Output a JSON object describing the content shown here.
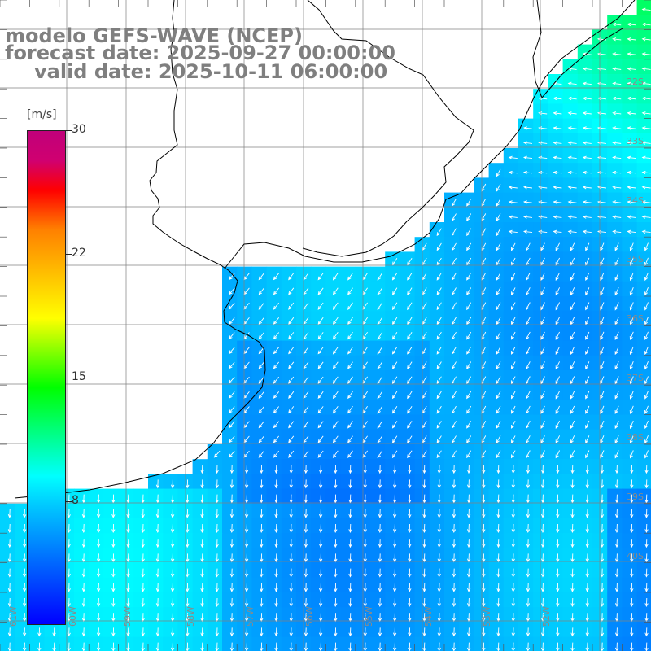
{
  "title": {
    "line1": "modelo GEFS-WAVE (NCEP)",
    "line2": "forecast date: 2025-09-27 00:00:00",
    "line3": "valid date: 2025-10-11 06:00:00"
  },
  "colorbar": {
    "unit": "[m/s]",
    "min": 0,
    "max": 30,
    "tick_labels": [
      "30",
      "22",
      "15",
      "8"
    ],
    "colors": [
      "#0000ff",
      "#00c8ff",
      "#00ffff",
      "#00ff00",
      "#ffff00",
      "#ff8000",
      "#ff0000",
      "#c0007a"
    ]
  },
  "lat_labels": [
    "32S",
    "33S",
    "34S",
    "35S",
    "36S",
    "37S",
    "38S",
    "39S",
    "40S"
  ],
  "lon_labels": [
    "61W",
    "60W",
    "59W",
    "58W",
    "57W",
    "56W",
    "55W",
    "54W",
    "53W",
    "52W"
  ],
  "map_colors": {
    "land": "#ffffff",
    "coast": "#000000",
    "grid": "#808080",
    "arrow": "#ffffff"
  }
}
